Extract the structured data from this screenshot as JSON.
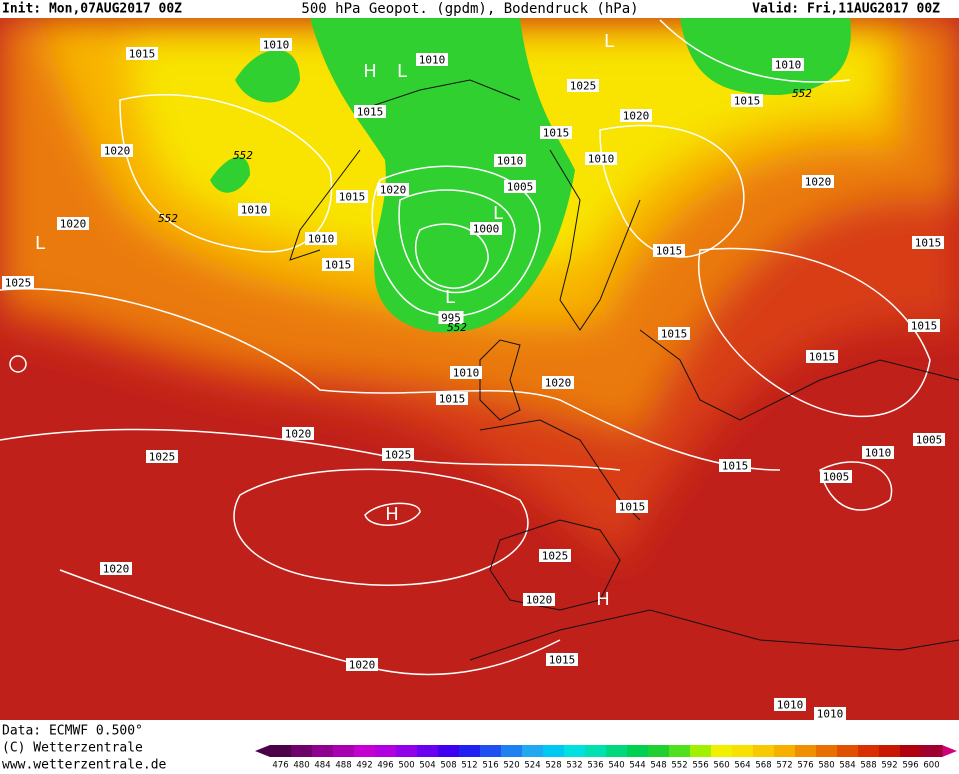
{
  "header": {
    "init": "Init: Mon,07AUG2017 00Z",
    "title": "500 hPa Geopot. (gpdm), Bodendruck (hPa)",
    "valid": "Valid: Fri,11AUG2017 00Z"
  },
  "footer": {
    "data": "Data: ECMWF  0.500°",
    "copyright": "(C) Wetterzentrale",
    "url": "www.wetterzentrale.de"
  },
  "isobar_labels": [
    "1015",
    "1010",
    "1010",
    "H",
    "L",
    "L",
    "1025",
    "1020",
    "1010",
    "552",
    "1015",
    "1015",
    "1020",
    "552",
    "1015",
    "1010",
    "1010",
    "1005",
    "1020",
    "1020",
    "1015",
    "552",
    "1010",
    "L",
    "1000",
    "1020",
    "L",
    "1010",
    "1015",
    "1015",
    "1015",
    "1025",
    "L",
    "995",
    "552",
    "1015",
    "1015",
    "1015",
    "1010",
    "1020",
    "1015",
    "1020",
    "1005",
    "1025",
    "1025",
    "1010",
    "1015",
    "1005",
    "H",
    "1015",
    "1025",
    "1020",
    "1020",
    "H",
    "1015",
    "1020",
    "1010",
    "1010"
  ],
  "colorbar": {
    "ticks": [
      476,
      480,
      484,
      488,
      492,
      496,
      500,
      504,
      508,
      512,
      516,
      520,
      524,
      528,
      532,
      536,
      540,
      544,
      548,
      552,
      556,
      560,
      564,
      568,
      572,
      576,
      580,
      584,
      588,
      592,
      596,
      600
    ],
    "colors": [
      "#4b0048",
      "#6d006b",
      "#8e0090",
      "#a800b0",
      "#c400d0",
      "#b000e0",
      "#9000e8",
      "#6a00f0",
      "#4000f0",
      "#2020f0",
      "#2050f0",
      "#2080f0",
      "#20a8f0",
      "#00c8f0",
      "#00e0e0",
      "#00e0b0",
      "#00d880",
      "#00d050",
      "#20d030",
      "#50e020",
      "#a0f000",
      "#f0f000",
      "#f8e000",
      "#f8c800",
      "#f8b000",
      "#f09000",
      "#e87000",
      "#e05000",
      "#d83000",
      "#c81800",
      "#b00010",
      "#a00030"
    ]
  }
}
